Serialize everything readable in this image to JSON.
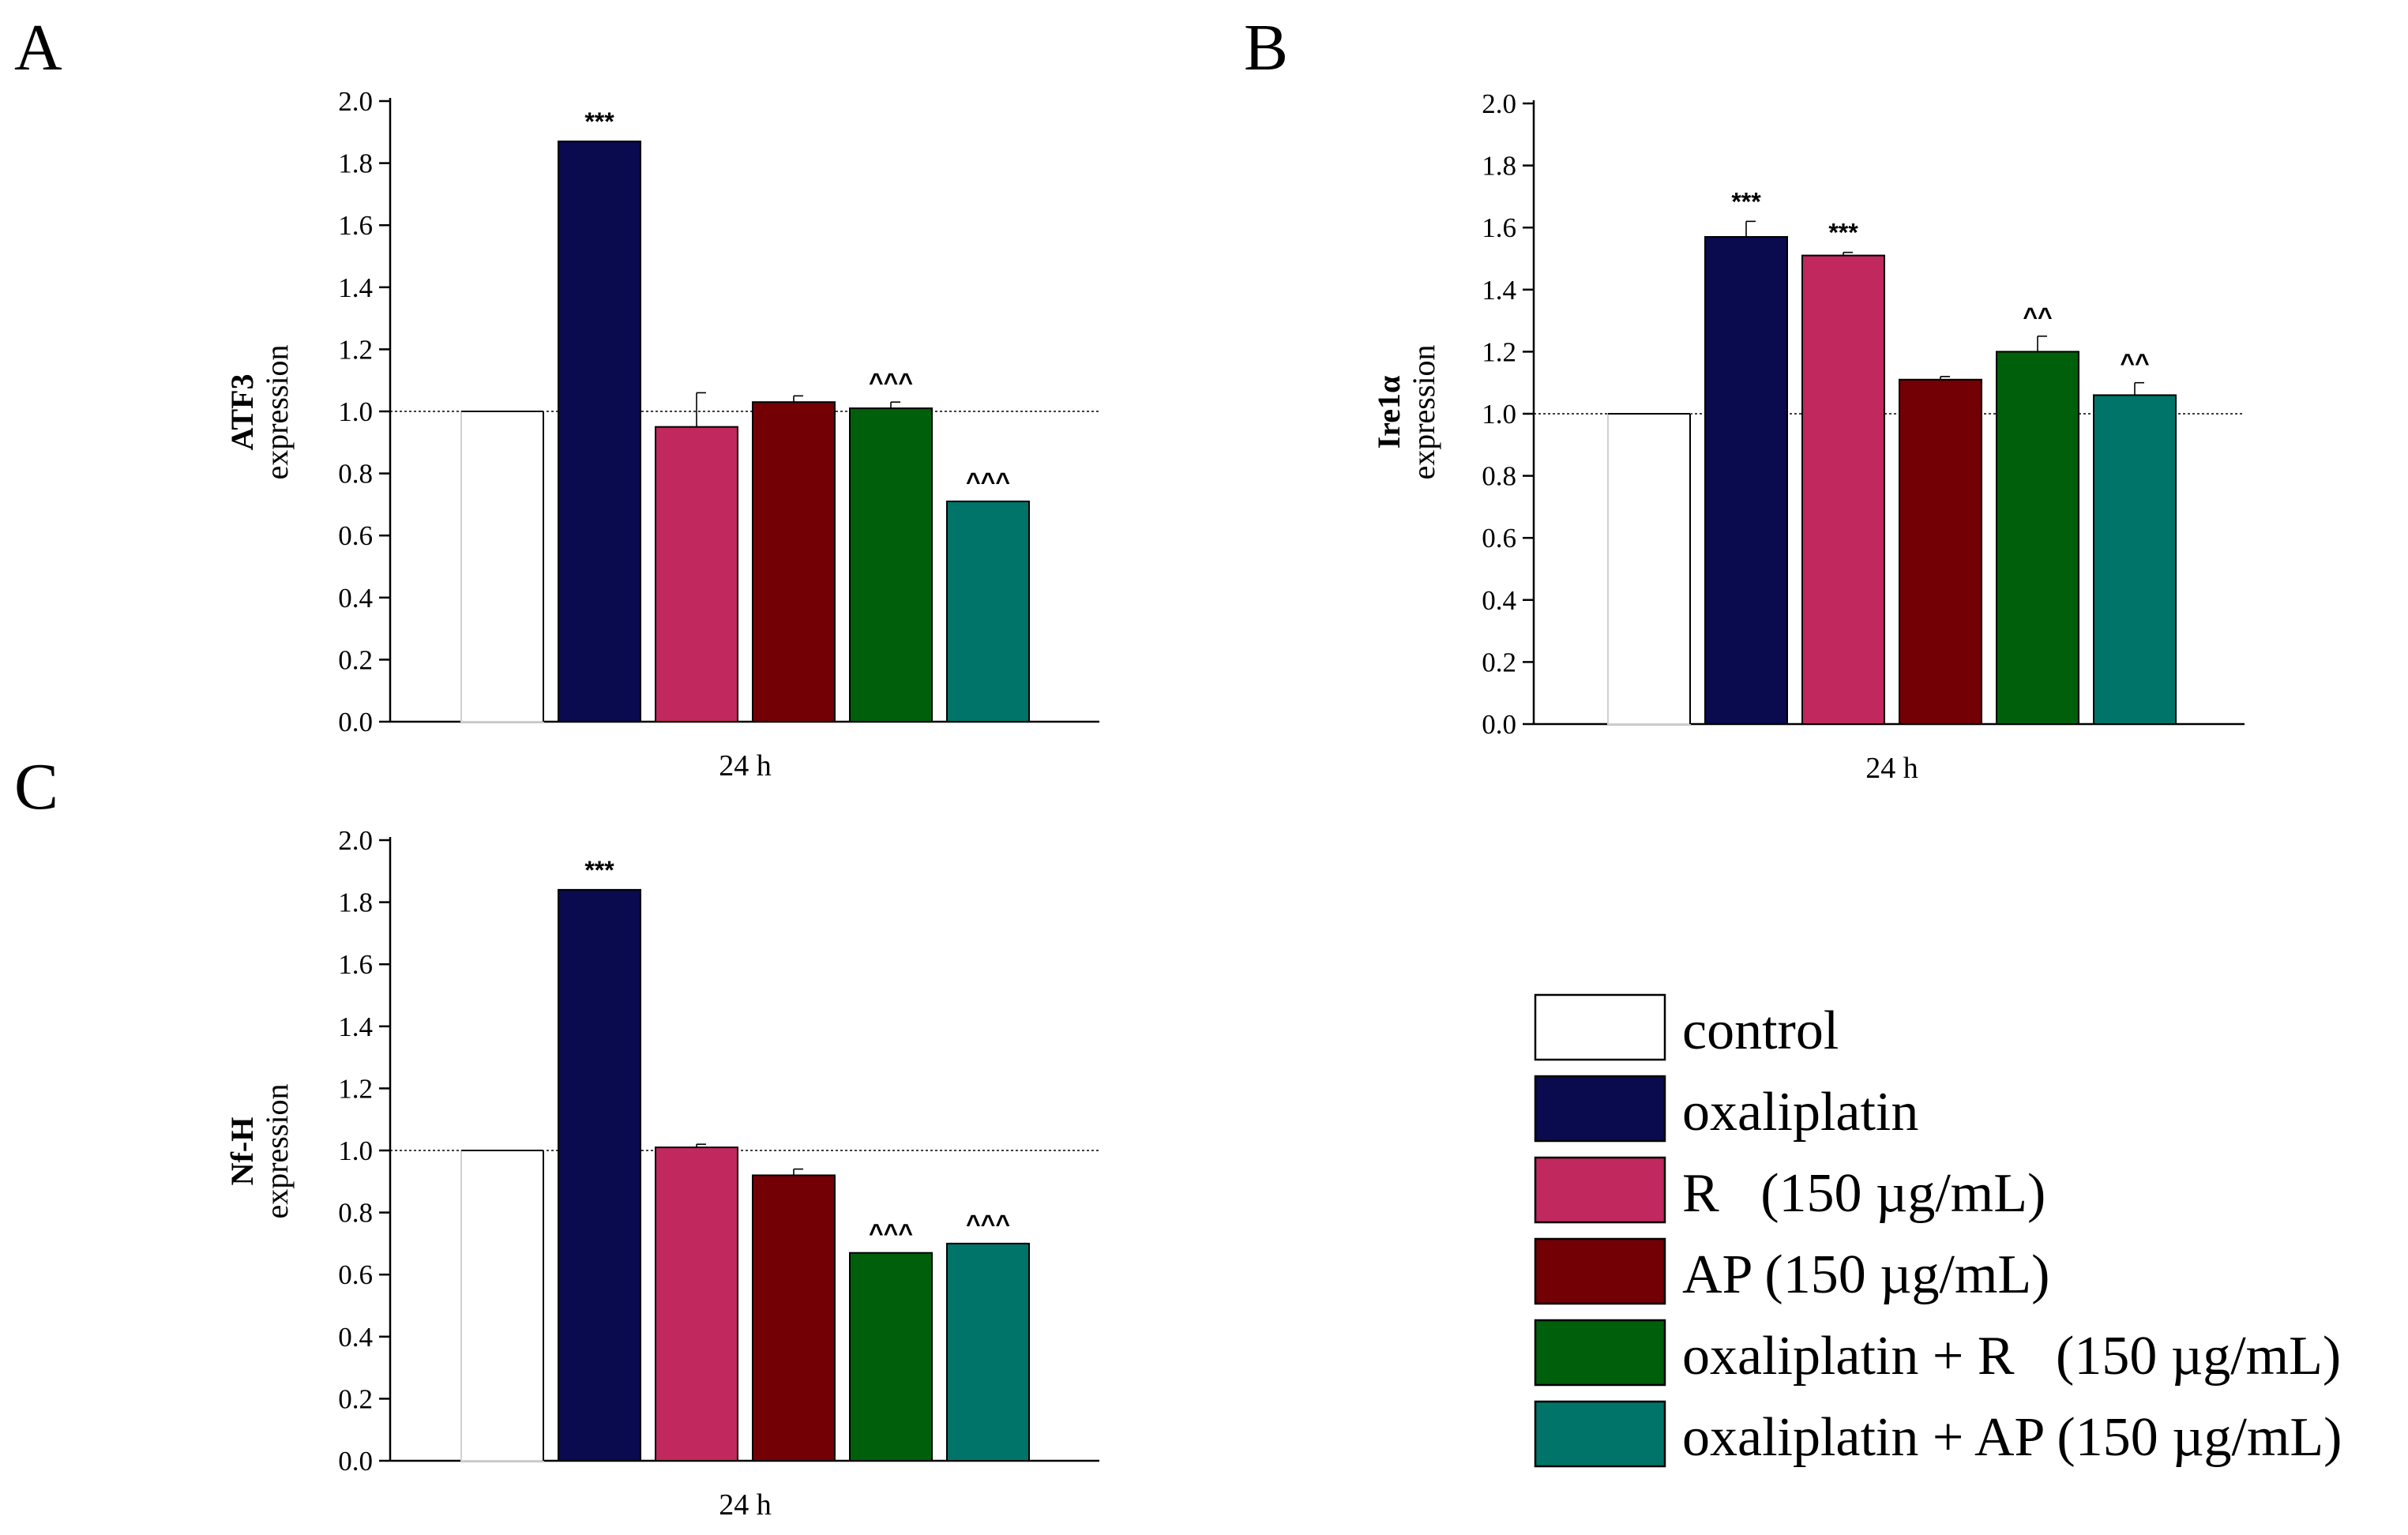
{
  "legend": {
    "items": [
      {
        "label": "control",
        "color": "#ffffff"
      },
      {
        "label": "oxaliplatin",
        "color": "#0a0a4e"
      },
      {
        "label": "R   (150 µg/mL)",
        "color": "#c0285e"
      },
      {
        "label": "AP (150 µg/mL)",
        "color": "#730004"
      },
      {
        "label": "oxaliplatin + R   (150 µg/mL)",
        "color": "#005f0b"
      },
      {
        "label": "oxaliplatin + AP (150 µg/mL)",
        "color": "#007468"
      }
    ]
  },
  "chart_data": [
    {
      "panel": "A",
      "type": "bar",
      "ylabel_bold": "ATF3",
      "ylabel": "expression",
      "categories": [
        "24 h"
      ],
      "ylim": [
        0,
        2.0
      ],
      "yticks": [
        "0.0",
        "0.2",
        "0.4",
        "0.6",
        "0.8",
        "1.0",
        "1.2",
        "1.4",
        "1.6",
        "1.8",
        "2.0"
      ],
      "reference_line": 1.0,
      "series": [
        {
          "name": "control",
          "values": [
            1.0
          ],
          "error": 0,
          "annotation": ""
        },
        {
          "name": "oxaliplatin",
          "values": [
            1.87
          ],
          "error": 0,
          "annotation": "***"
        },
        {
          "name": "R (150 µg/mL)",
          "values": [
            0.95
          ],
          "error": 0.11,
          "annotation": ""
        },
        {
          "name": "AP (150 µg/mL)",
          "values": [
            1.03
          ],
          "error": 0.02,
          "annotation": ""
        },
        {
          "name": "oxaliplatin + R (150 µg/mL)",
          "values": [
            1.01
          ],
          "error": 0.02,
          "annotation": "^^^"
        },
        {
          "name": "oxaliplatin + AP (150 µg/mL)",
          "values": [
            0.71
          ],
          "error": 0,
          "annotation": "^^^"
        }
      ]
    },
    {
      "panel": "B",
      "type": "bar",
      "ylabel_bold": "Ire1α",
      "ylabel": "expression",
      "categories": [
        "24 h"
      ],
      "ylim": [
        0,
        2.0
      ],
      "yticks": [
        "0.0",
        "0.2",
        "0.4",
        "0.6",
        "0.8",
        "1.0",
        "1.2",
        "1.4",
        "1.6",
        "1.8",
        "2.0"
      ],
      "reference_line": 1.0,
      "series": [
        {
          "name": "control",
          "values": [
            1.0
          ],
          "error": 0,
          "annotation": ""
        },
        {
          "name": "oxaliplatin",
          "values": [
            1.57
          ],
          "error": 0.05,
          "annotation": "***"
        },
        {
          "name": "R (150 µg/mL)",
          "values": [
            1.51
          ],
          "error": 0.01,
          "annotation": "***"
        },
        {
          "name": "AP (150 µg/mL)",
          "values": [
            1.11
          ],
          "error": 0.01,
          "annotation": ""
        },
        {
          "name": "oxaliplatin + R (150 µg/mL)",
          "values": [
            1.2
          ],
          "error": 0.05,
          "annotation": "^^"
        },
        {
          "name": "oxaliplatin + AP (150 µg/mL)",
          "values": [
            1.06
          ],
          "error": 0.04,
          "annotation": "^^"
        }
      ]
    },
    {
      "panel": "C",
      "type": "bar",
      "ylabel_bold": "Nf-H",
      "ylabel": "expression",
      "categories": [
        "24 h"
      ],
      "ylim": [
        0,
        2.0
      ],
      "yticks": [
        "0.0",
        "0.2",
        "0.4",
        "0.6",
        "0.8",
        "1.0",
        "1.2",
        "1.4",
        "1.6",
        "1.8",
        "2.0"
      ],
      "reference_line": 1.0,
      "series": [
        {
          "name": "control",
          "values": [
            1.0
          ],
          "error": 0,
          "annotation": ""
        },
        {
          "name": "oxaliplatin",
          "values": [
            1.84
          ],
          "error": 0,
          "annotation": "***"
        },
        {
          "name": "R (150 µg/mL)",
          "values": [
            1.01
          ],
          "error": 0.01,
          "annotation": ""
        },
        {
          "name": "AP (150 µg/mL)",
          "values": [
            0.92
          ],
          "error": 0.02,
          "annotation": ""
        },
        {
          "name": "oxaliplatin + R (150 µg/mL)",
          "values": [
            0.67
          ],
          "error": 0,
          "annotation": "^^^"
        },
        {
          "name": "oxaliplatin + AP (150 µg/mL)",
          "values": [
            0.7
          ],
          "error": 0,
          "annotation": "^^^"
        }
      ]
    }
  ]
}
